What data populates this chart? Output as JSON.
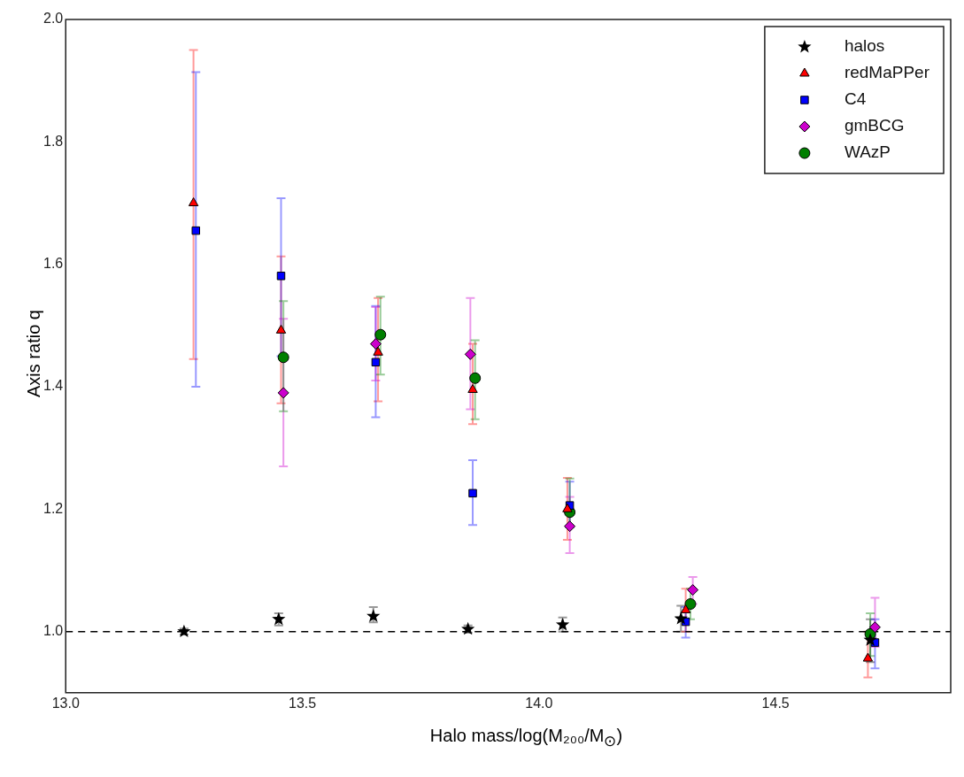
{
  "chart_data": {
    "type": "scatter",
    "xlabel": "Halo mass/log(M₂₀₀/M$_{⊙}$)",
    "ylabel": "Axis ratio q",
    "xlim": [
      13.0,
      14.87
    ],
    "xticks": [
      {
        "value": 13.0,
        "label": "13.0"
      },
      {
        "value": 13.5,
        "label": "13.5"
      },
      {
        "value": 14.0,
        "label": "14.0"
      },
      {
        "value": 14.5,
        "label": "14.5"
      }
    ],
    "ylim": [
      0.9,
      2.0
    ],
    "yticks": [
      {
        "value": 1.0,
        "label": "1.0"
      },
      {
        "value": 1.2,
        "label": "1.2"
      },
      {
        "value": 1.4,
        "label": "1.4"
      },
      {
        "value": 1.6,
        "label": "1.6"
      },
      {
        "value": 1.8,
        "label": "1.8"
      },
      {
        "value": 2.0,
        "label": "2.0"
      }
    ],
    "legend": "top right",
    "ref_lines": [
      {
        "axis": "y",
        "value": 1.0,
        "color": "#000000",
        "line_style": "dashed"
      }
    ],
    "series": [
      {
        "name": "halos",
        "color": "#000000",
        "marker": "star",
        "x": [
          13.25,
          13.45,
          13.65,
          13.85,
          14.05,
          14.3,
          14.7
        ],
        "values": [
          1.0,
          1.02,
          1.025,
          1.004,
          1.011,
          1.021,
          0.986
        ],
        "errors": [
          [
            0.995,
            1.005
          ],
          [
            1.01,
            1.03
          ],
          [
            1.015,
            1.04
          ],
          [
            0.998,
            1.01
          ],
          [
            1.0,
            1.023
          ],
          [
            1.0,
            1.042
          ],
          [
            0.95,
            1.02
          ]
        ]
      },
      {
        "name": "redMaPPer",
        "color": "#ff0000",
        "marker": "triangle",
        "x": [
          13.27,
          13.455,
          13.66,
          13.86,
          14.06,
          14.31,
          14.695
        ],
        "values": [
          1.7,
          1.492,
          1.456,
          1.395,
          1.2,
          1.035,
          0.956
        ],
        "errors": [
          [
            1.445,
            1.95
          ],
          [
            1.373,
            1.613
          ],
          [
            1.376,
            1.545
          ],
          [
            1.339,
            1.47
          ],
          [
            1.15,
            1.251
          ],
          [
            1.0,
            1.07
          ],
          [
            0.925,
            1.0
          ]
        ]
      },
      {
        "name": "C4",
        "color": "#0000ff",
        "marker": "square",
        "x": [
          13.275,
          13.455,
          13.655,
          13.86,
          14.065,
          14.31,
          14.71
        ],
        "values": [
          1.655,
          1.581,
          1.44,
          1.226,
          1.206,
          1.016,
          0.982
        ],
        "errors": [
          [
            1.4,
            1.914
          ],
          [
            1.45,
            1.708
          ],
          [
            1.35,
            1.532
          ],
          [
            1.174,
            1.28
          ],
          [
            1.17,
            1.245
          ],
          [
            0.99,
            1.04
          ],
          [
            0.94,
            1.02
          ]
        ]
      },
      {
        "name": "gmBCG",
        "color": "#cc00cc",
        "marker": "diamond",
        "x": [
          13.46,
          13.655,
          13.855,
          14.065,
          14.325,
          14.71
        ],
        "values": [
          1.39,
          1.47,
          1.453,
          1.172,
          1.068,
          1.007
        ],
        "errors": [
          [
            1.27,
            1.511
          ],
          [
            1.41,
            1.53
          ],
          [
            1.363,
            1.545
          ],
          [
            1.128,
            1.22
          ],
          [
            1.045,
            1.089
          ],
          [
            0.975,
            1.055
          ]
        ]
      },
      {
        "name": "WAzP",
        "color": "#007f00",
        "marker": "circle",
        "x": [
          13.46,
          13.665,
          13.865,
          14.065,
          14.32,
          14.7
        ],
        "values": [
          1.448,
          1.485,
          1.414,
          1.195,
          1.045,
          0.996
        ],
        "errors": [
          [
            1.36,
            1.54
          ],
          [
            1.42,
            1.547
          ],
          [
            1.347,
            1.476
          ],
          [
            1.17,
            1.25
          ],
          [
            1.02,
            1.07
          ],
          [
            0.96,
            1.03
          ]
        ]
      }
    ]
  }
}
